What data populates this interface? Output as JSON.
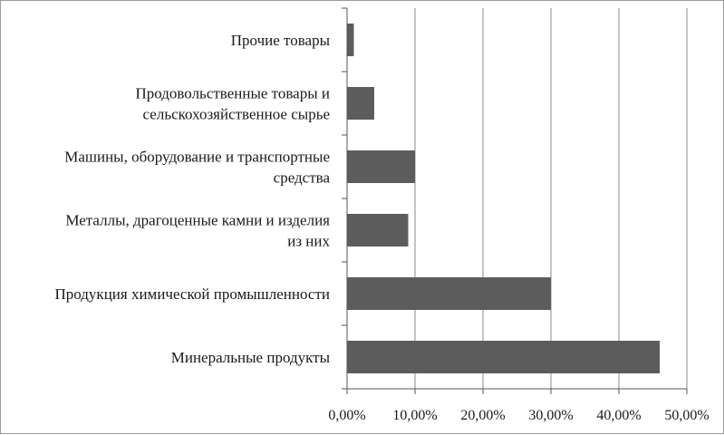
{
  "chart_data": {
    "type": "bar",
    "orientation": "horizontal",
    "categories": [
      [
        "Минеральные продукты"
      ],
      [
        "Продукция химической промышленности"
      ],
      [
        "Металлы, драгоценные камни и изделия",
        "из них"
      ],
      [
        "Машины, оборудование и транспортные",
        "средства"
      ],
      [
        "Продовольственные товары и",
        "сельскохозяйственное сырье"
      ],
      [
        "Прочие товары"
      ]
    ],
    "values": [
      0.46,
      0.3,
      0.09,
      0.1,
      0.04,
      0.01
    ],
    "xlim": [
      0,
      0.5
    ],
    "xticks": [
      0,
      0.1,
      0.2,
      0.3,
      0.4,
      0.5
    ],
    "xtick_labels": [
      "0,00%",
      "10,00%",
      "20,00%",
      "30,00%",
      "40,00%",
      "50,00%"
    ],
    "grid": "vertical",
    "legend": "none",
    "bar_color": "#5c5c5c",
    "grid_color": "#8a8a8a"
  }
}
